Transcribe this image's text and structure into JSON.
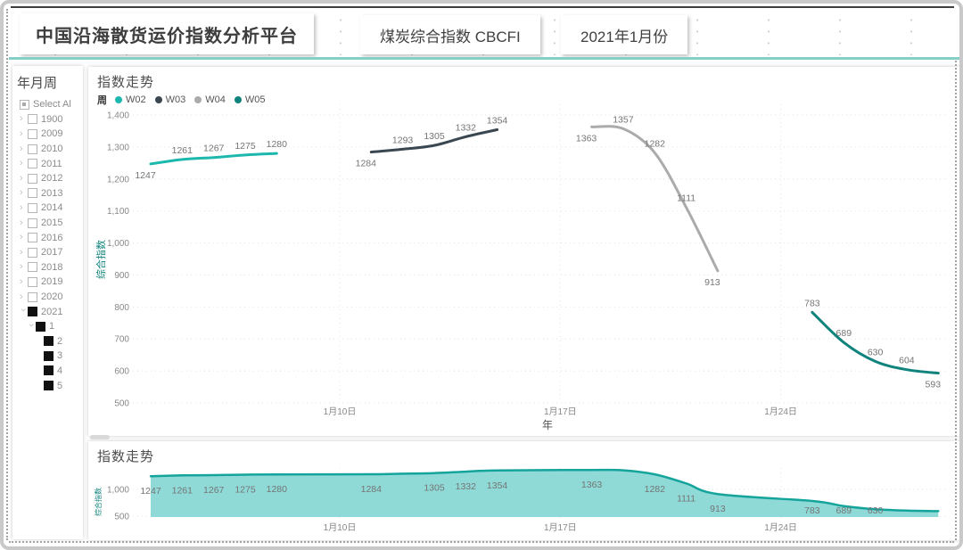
{
  "header": {
    "title": "中国沿海散货运价指数分析平台",
    "index_button": "煤炭综合指数 CBCFI",
    "month_button": "2021年1月份"
  },
  "colors": {
    "divider": "#86cfc6",
    "w02": "#1cb8ae",
    "w03": "#3a4750",
    "w04": "#aaabad",
    "w05": "#0f837c",
    "area_fill": "#8fd9d6",
    "area_stroke": "#15a49c"
  },
  "sidebar": {
    "title": "年月周",
    "select_all": "Select Al",
    "items": [
      {
        "label": "1900",
        "level": 0,
        "checked": false,
        "expand": "collapsed"
      },
      {
        "label": "2009",
        "level": 0,
        "checked": false,
        "expand": "collapsed"
      },
      {
        "label": "2010",
        "level": 0,
        "checked": false,
        "expand": "collapsed"
      },
      {
        "label": "2011",
        "level": 0,
        "checked": false,
        "expand": "collapsed"
      },
      {
        "label": "2012",
        "level": 0,
        "checked": false,
        "expand": "collapsed"
      },
      {
        "label": "2013",
        "level": 0,
        "checked": false,
        "expand": "collapsed"
      },
      {
        "label": "2014",
        "level": 0,
        "checked": false,
        "expand": "collapsed"
      },
      {
        "label": "2015",
        "level": 0,
        "checked": false,
        "expand": "collapsed"
      },
      {
        "label": "2016",
        "level": 0,
        "checked": false,
        "expand": "collapsed"
      },
      {
        "label": "2017",
        "level": 0,
        "checked": false,
        "expand": "collapsed"
      },
      {
        "label": "2018",
        "level": 0,
        "checked": false,
        "expand": "collapsed"
      },
      {
        "label": "2019",
        "level": 0,
        "checked": false,
        "expand": "collapsed"
      },
      {
        "label": "2020",
        "level": 0,
        "checked": false,
        "expand": "collapsed"
      },
      {
        "label": "2021",
        "level": 0,
        "checked": true,
        "expand": "expanded"
      },
      {
        "label": "1",
        "level": 1,
        "checked": true,
        "expand": "expanded"
      },
      {
        "label": "2",
        "level": 2,
        "checked": true,
        "expand": "none"
      },
      {
        "label": "3",
        "level": 2,
        "checked": true,
        "expand": "none"
      },
      {
        "label": "4",
        "level": 2,
        "checked": true,
        "expand": "none"
      },
      {
        "label": "5",
        "level": 2,
        "checked": true,
        "expand": "none"
      }
    ]
  },
  "main_chart": {
    "title": "指数走势",
    "legend_label": "周"
  },
  "bottom_chart": {
    "title": "指数走势"
  },
  "chart_data": [
    {
      "type": "line",
      "title": "指数走势",
      "xlabel": "年",
      "ylabel": "综合指数",
      "ylim": [
        500,
        1400
      ],
      "grid": true,
      "legend_position": "top-left",
      "y_ticks": [
        {
          "v": 1400,
          "label": "1,400"
        },
        {
          "v": 1300,
          "label": "1,300"
        },
        {
          "v": 1200,
          "label": "1,200"
        },
        {
          "v": 1100,
          "label": "1,100"
        },
        {
          "v": 1000,
          "label": "1,000"
        },
        {
          "v": 900,
          "label": "900"
        },
        {
          "v": 800,
          "label": "800"
        },
        {
          "v": 700,
          "label": "700"
        },
        {
          "v": 600,
          "label": "600"
        },
        {
          "v": 500,
          "label": "500"
        }
      ],
      "x_ticks": [
        {
          "day": 10,
          "label": "1月10日"
        },
        {
          "day": 17,
          "label": "1月17日"
        },
        {
          "day": 24,
          "label": "1月24日"
        }
      ],
      "series": [
        {
          "name": "W02",
          "color": "#1cb8ae",
          "days": [
            4,
            5,
            6,
            7,
            8
          ],
          "values": [
            1247,
            1261,
            1267,
            1275,
            1280
          ],
          "label_pos": [
            "below",
            "above",
            "above",
            "above",
            "above"
          ]
        },
        {
          "name": "W03",
          "color": "#3a4750",
          "days": [
            11,
            12,
            13,
            14,
            15
          ],
          "values": [
            1284,
            1293,
            1305,
            1332,
            1354
          ],
          "label_pos": [
            "below",
            "above",
            "above",
            "above",
            "above"
          ]
        },
        {
          "name": "W04",
          "color": "#aaabad",
          "days": [
            18,
            19,
            20,
            21,
            22
          ],
          "values": [
            1363,
            1357,
            1282,
            1111,
            913
          ],
          "label_pos": [
            "below",
            "above",
            "above",
            "above",
            "below"
          ]
        },
        {
          "name": "W05",
          "color": "#0f837c",
          "days": [
            25,
            26,
            27,
            28,
            29
          ],
          "values": [
            783,
            689,
            630,
            604,
            593
          ],
          "label_pos": [
            "above",
            "above",
            "above",
            "above",
            "below"
          ]
        }
      ]
    },
    {
      "type": "area",
      "title": "指数走势",
      "ylabel": "综合指数",
      "ylim": [
        500,
        1400
      ],
      "fill": "#8fd9d6",
      "stroke": "#15a49c",
      "y_ticks": [
        {
          "v": 1000,
          "label": "1,000"
        },
        {
          "v": 500,
          "label": "500"
        }
      ],
      "x_ticks": [
        {
          "day": 10,
          "label": "1月10日"
        },
        {
          "day": 17,
          "label": "1月17日"
        },
        {
          "day": 24,
          "label": "1月24日"
        }
      ],
      "days": [
        4,
        5,
        6,
        7,
        8,
        11,
        12,
        13,
        14,
        15,
        18,
        19,
        20,
        21,
        22,
        25,
        26,
        27,
        28,
        29
      ],
      "values": [
        1247,
        1261,
        1267,
        1275,
        1280,
        1284,
        1293,
        1305,
        1332,
        1354,
        1363,
        1357,
        1282,
        1111,
        913,
        783,
        689,
        630,
        604,
        593
      ],
      "show_label": [
        true,
        true,
        true,
        true,
        true,
        true,
        false,
        true,
        true,
        true,
        true,
        false,
        true,
        true,
        true,
        true,
        true,
        true,
        false,
        false
      ]
    }
  ]
}
